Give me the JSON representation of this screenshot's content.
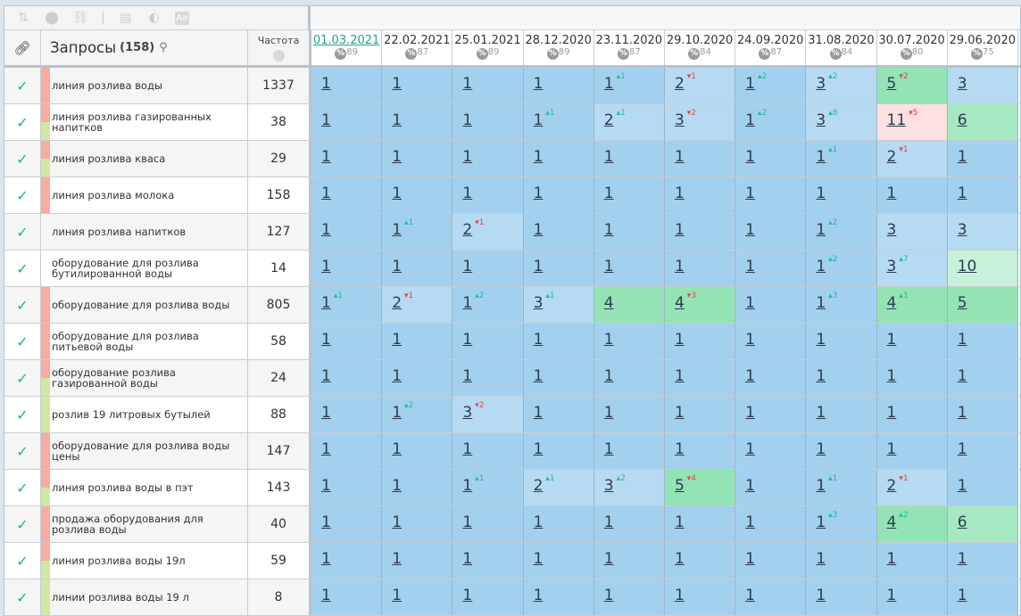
{
  "toolbar": {
    "icons": [
      "sort-icon",
      "toggle-icon",
      "link-icon",
      "window-icon",
      "contrast-icon",
      "font-icon"
    ]
  },
  "header": {
    "query_title": "Запросы",
    "query_count": "(158)",
    "freq_title": "Частота"
  },
  "colors": {
    "pos1": "#a3d0ee",
    "pos2_3": "#b6daf1",
    "pos4_5": "#93e3b4",
    "pos6_9": "#a5e8c2",
    "pos10": "#c9f0da",
    "pos11plus": "#fde0e0",
    "strip_red": "#f7aaa0",
    "strip_green": "#cfe8a4",
    "up": "#20b8a0",
    "down": "#e04545",
    "check": "#1fb18f"
  },
  "dates": [
    {
      "date": "01.03.2021",
      "visibility": "89"
    },
    {
      "date": "22.02.2021",
      "visibility": "87"
    },
    {
      "date": "25.01.2021",
      "visibility": "89"
    },
    {
      "date": "28.12.2020",
      "visibility": "89"
    },
    {
      "date": "23.11.2020",
      "visibility": "87"
    },
    {
      "date": "29.10.2020",
      "visibility": "84"
    },
    {
      "date": "24.09.2020",
      "visibility": "87"
    },
    {
      "date": "31.08.2020",
      "visibility": "84"
    },
    {
      "date": "30.07.2020",
      "visibility": "80"
    },
    {
      "date": "29.06.2020",
      "visibility": "75"
    }
  ],
  "rows": [
    {
      "query": "линия розлива воды",
      "freq": "1337",
      "strip": [
        "red"
      ],
      "pos": [
        [
          1
        ],
        [
          1
        ],
        [
          1
        ],
        [
          1
        ],
        [
          1,
          1
        ],
        [
          2,
          -1
        ],
        [
          1,
          2
        ],
        [
          3,
          2
        ],
        [
          5,
          -2
        ],
        [
          3
        ]
      ]
    },
    {
      "query": "линия розлива газированных напитков",
      "freq": "38",
      "strip": [
        "red",
        "green"
      ],
      "pos": [
        [
          1
        ],
        [
          1
        ],
        [
          1
        ],
        [
          1,
          1
        ],
        [
          2,
          1
        ],
        [
          3,
          -2
        ],
        [
          1,
          2
        ],
        [
          3,
          8
        ],
        [
          11,
          -5
        ],
        [
          6
        ]
      ]
    },
    {
      "query": "линия розлива кваса",
      "freq": "29",
      "strip": [
        "red",
        "green"
      ],
      "pos": [
        [
          1
        ],
        [
          1
        ],
        [
          1
        ],
        [
          1
        ],
        [
          1
        ],
        [
          1
        ],
        [
          1
        ],
        [
          1,
          1
        ],
        [
          2,
          -1
        ],
        [
          1
        ]
      ]
    },
    {
      "query": "линия розлива молока",
      "freq": "158",
      "strip": [
        "red"
      ],
      "pos": [
        [
          1
        ],
        [
          1
        ],
        [
          1
        ],
        [
          1
        ],
        [
          1
        ],
        [
          1
        ],
        [
          1
        ],
        [
          1
        ],
        [
          1
        ],
        [
          1
        ]
      ]
    },
    {
      "query": "линия розлива напитков",
      "freq": "127",
      "strip": [],
      "pos": [
        [
          1
        ],
        [
          1,
          1
        ],
        [
          2,
          -1
        ],
        [
          1
        ],
        [
          1
        ],
        [
          1
        ],
        [
          1
        ],
        [
          1,
          2
        ],
        [
          3
        ],
        [
          3
        ]
      ]
    },
    {
      "query": "оборудование для розлива бутилированной воды",
      "freq": "14",
      "strip": [],
      "pos": [
        [
          1
        ],
        [
          1
        ],
        [
          1
        ],
        [
          1
        ],
        [
          1
        ],
        [
          1
        ],
        [
          1
        ],
        [
          1,
          2
        ],
        [
          3,
          7
        ],
        [
          10
        ]
      ]
    },
    {
      "query": "оборудование для розлива воды",
      "freq": "805",
      "strip": [
        "red"
      ],
      "pos": [
        [
          1,
          1
        ],
        [
          2,
          -1
        ],
        [
          1,
          2
        ],
        [
          3,
          1
        ],
        [
          4
        ],
        [
          4,
          -3
        ],
        [
          1
        ],
        [
          1,
          3
        ],
        [
          4,
          1
        ],
        [
          5
        ]
      ]
    },
    {
      "query": "оборудование для розлива питьевой воды",
      "freq": "58",
      "strip": [
        "red"
      ],
      "pos": [
        [
          1
        ],
        [
          1
        ],
        [
          1
        ],
        [
          1
        ],
        [
          1
        ],
        [
          1
        ],
        [
          1
        ],
        [
          1
        ],
        [
          1
        ],
        [
          1
        ]
      ]
    },
    {
      "query": "оборудование розлива газированной воды",
      "freq": "24",
      "strip": [
        "red",
        "green"
      ],
      "pos": [
        [
          1
        ],
        [
          1
        ],
        [
          1
        ],
        [
          1
        ],
        [
          1
        ],
        [
          1
        ],
        [
          1
        ],
        [
          1
        ],
        [
          1
        ],
        [
          1
        ]
      ]
    },
    {
      "query": "розлив 19 литровых бутылей",
      "freq": "88",
      "strip": [
        "green"
      ],
      "pos": [
        [
          1
        ],
        [
          1,
          2
        ],
        [
          3,
          -2
        ],
        [
          1
        ],
        [
          1
        ],
        [
          1
        ],
        [
          1
        ],
        [
          1
        ],
        [
          1
        ],
        [
          1
        ]
      ]
    },
    {
      "query": "оборудование для розлива воды цены",
      "freq": "147",
      "strip": [
        "red"
      ],
      "pos": [
        [
          1
        ],
        [
          1
        ],
        [
          1
        ],
        [
          1
        ],
        [
          1
        ],
        [
          1
        ],
        [
          1
        ],
        [
          1
        ],
        [
          1
        ],
        [
          1
        ]
      ]
    },
    {
      "query": "линия розлива воды в пэт",
      "freq": "143",
      "strip": [
        "red",
        "green"
      ],
      "pos": [
        [
          1
        ],
        [
          1
        ],
        [
          1,
          1
        ],
        [
          2,
          1
        ],
        [
          3,
          2
        ],
        [
          5,
          -4
        ],
        [
          1
        ],
        [
          1,
          1
        ],
        [
          2,
          -1
        ],
        [
          1
        ]
      ]
    },
    {
      "query": "продажа оборудования для розлива воды",
      "freq": "40",
      "strip": [
        "red"
      ],
      "pos": [
        [
          1
        ],
        [
          1
        ],
        [
          1
        ],
        [
          1
        ],
        [
          1
        ],
        [
          1
        ],
        [
          1
        ],
        [
          1,
          3
        ],
        [
          4,
          2
        ],
        [
          6
        ]
      ]
    },
    {
      "query": "линия розлива воды 19л",
      "freq": "59",
      "strip": [
        "red",
        "green"
      ],
      "pos": [
        [
          1
        ],
        [
          1
        ],
        [
          1
        ],
        [
          1
        ],
        [
          1
        ],
        [
          1
        ],
        [
          1
        ],
        [
          1
        ],
        [
          1
        ],
        [
          1
        ]
      ]
    },
    {
      "query": "линии розлива воды 19 л",
      "freq": "8",
      "strip": [
        "green"
      ],
      "pos": [
        [
          1
        ],
        [
          1
        ],
        [
          1
        ],
        [
          1
        ],
        [
          1
        ],
        [
          1
        ],
        [
          1
        ],
        [
          1
        ],
        [
          1
        ],
        [
          1
        ]
      ]
    }
  ]
}
